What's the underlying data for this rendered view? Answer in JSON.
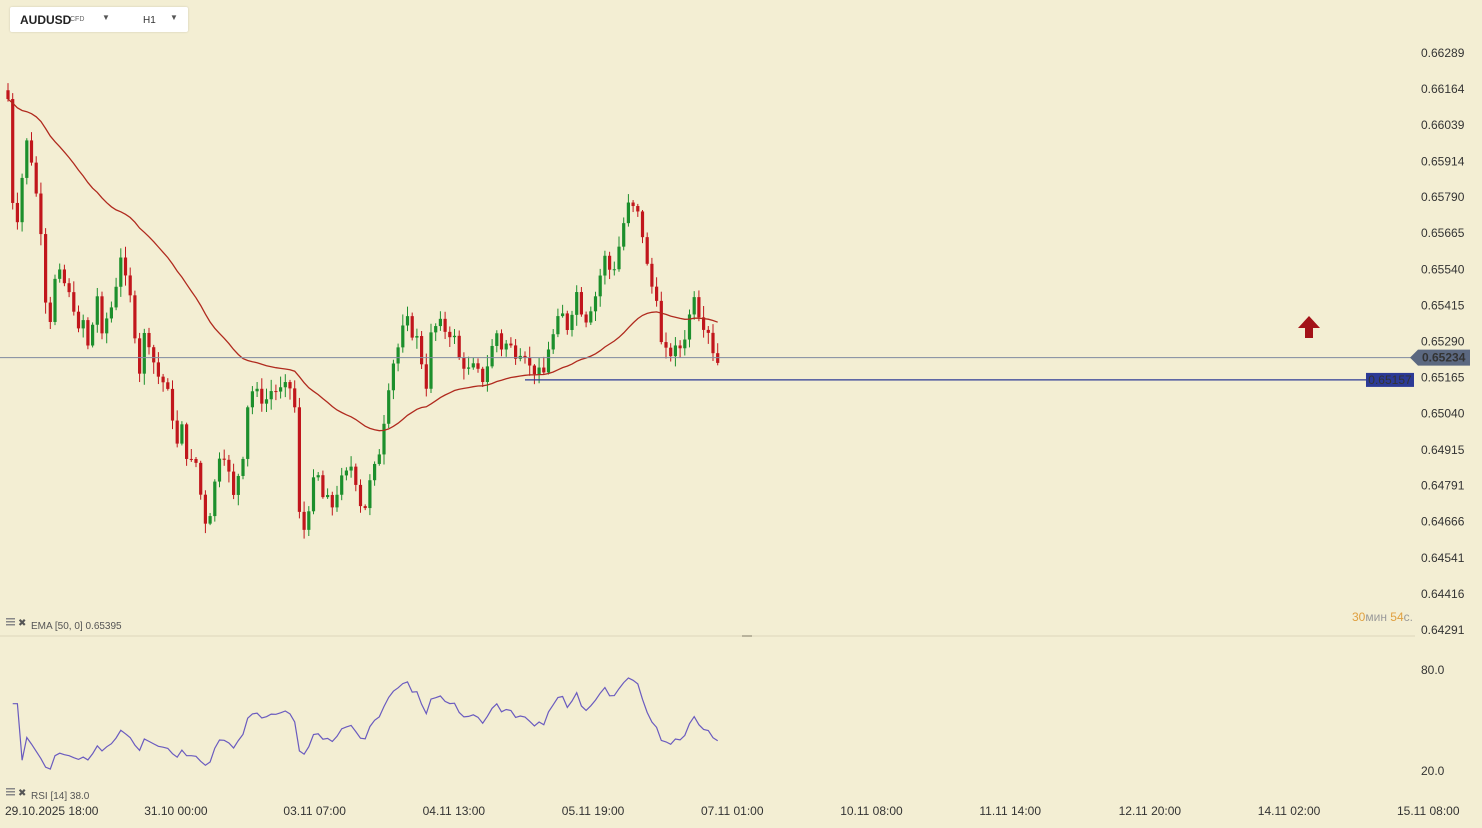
{
  "header": {
    "symbol": "AUDUSD",
    "symbol_type": "CFD",
    "timeframe": "H1"
  },
  "countdown": {
    "minutes": "30",
    "min_unit": "мин",
    "seconds": "54",
    "sec_unit": "с."
  },
  "indicators": {
    "ema_label": "EMA [50, 0] 0.65395",
    "rsi_label": "RSI [14] 38.0"
  },
  "colors": {
    "background": "#f3eed3",
    "bull": "#1c8f2c",
    "bear": "#c1161c",
    "ema": "#b02a1e",
    "rsi": "#6a5bbf",
    "price_line": "#7f8aa0",
    "level_line": "#2c3a96",
    "current_price_tag": "#5b6880",
    "level_tag": "#2c3a96",
    "arrow": "#a31218"
  },
  "icons": {
    "signal": "up-arrow-icon",
    "indicator_settings": "grip-icon",
    "indicator_close": "close-icon"
  },
  "chart_data": [
    {
      "type": "candlestick",
      "title": "AUDUSD H1",
      "x_labels": [
        "29.10.2025 18:00",
        "31.10 00:00",
        "03.11 07:00",
        "04.11 13:00",
        "05.11 19:00",
        "07.11 01:00",
        "10.11 08:00",
        "11.11 14:00",
        "12.11 20:00",
        "14.11 02:00",
        "15.11 08:00"
      ],
      "y_ticks": [
        "0.66289",
        "0.66164",
        "0.66039",
        "0.65914",
        "0.65790",
        "0.65665",
        "0.65540",
        "0.65415",
        "0.65290",
        "0.65165",
        "0.65040",
        "0.64915",
        "0.64791",
        "0.64666",
        "0.64541",
        "0.64416",
        "0.64291"
      ],
      "ylim": [
        0.64291,
        0.66289
      ],
      "current_price": "0.65234",
      "horizontal_level": "0.65157",
      "close_path": [
        0.6613,
        0.6578,
        0.6572,
        0.6586,
        0.6598,
        0.6592,
        0.658,
        0.6568,
        0.6544,
        0.6537,
        0.655,
        0.6552,
        0.6549,
        0.6545,
        0.6541,
        0.6532,
        0.6536,
        0.6527,
        0.6535,
        0.6545,
        0.653,
        0.6537,
        0.6541,
        0.6549,
        0.6559,
        0.655,
        0.6544,
        0.6532,
        0.6519,
        0.6531,
        0.6529,
        0.6522,
        0.6517,
        0.6515,
        0.6511,
        0.6503,
        0.6493,
        0.6499,
        0.649,
        0.6487,
        0.6487,
        0.6476,
        0.6467,
        0.647,
        0.648,
        0.649,
        0.649,
        0.6483,
        0.6475,
        0.6483,
        0.649,
        0.6507,
        0.6512,
        0.6511,
        0.6509,
        0.6509,
        0.6512,
        0.6512,
        0.6512,
        0.6513,
        0.6513,
        0.6506,
        0.6469,
        0.6464,
        0.6472,
        0.648,
        0.6482,
        0.6475,
        0.6474,
        0.6472,
        0.6477,
        0.6481,
        0.6483,
        0.6486,
        0.6481,
        0.6473,
        0.6472,
        0.648,
        0.6485,
        0.6491,
        0.6502,
        0.6514,
        0.6522,
        0.6527,
        0.6533,
        0.6536,
        0.6532,
        0.653,
        0.6522,
        0.6514,
        0.6531,
        0.6534,
        0.6535,
        0.6533,
        0.6532,
        0.653,
        0.6523,
        0.6521,
        0.6519,
        0.652,
        0.6518,
        0.6516,
        0.6521,
        0.6527,
        0.6532,
        0.6527,
        0.6528,
        0.6527,
        0.6525,
        0.6526,
        0.6525,
        0.652,
        0.6519,
        0.6518,
        0.6518,
        0.6527,
        0.6531,
        0.6536,
        0.6538,
        0.6534,
        0.654,
        0.6546,
        0.654,
        0.6537,
        0.6541,
        0.6545,
        0.6552,
        0.6558,
        0.6554,
        0.6555,
        0.6562,
        0.657,
        0.6576,
        0.6575,
        0.6573,
        0.6566,
        0.6555,
        0.6548,
        0.6545,
        0.6528,
        0.6525,
        0.6525,
        0.6526,
        0.6527,
        0.6531,
        0.6538,
        0.6546,
        0.6539,
        0.6535,
        0.6533,
        0.6526,
        0.6522
      ]
    },
    {
      "type": "line",
      "title": "RSI [14]",
      "y_ticks": [
        "80.0",
        "20.0"
      ],
      "ylim": [
        20,
        80
      ],
      "last_value": 38.0
    }
  ]
}
